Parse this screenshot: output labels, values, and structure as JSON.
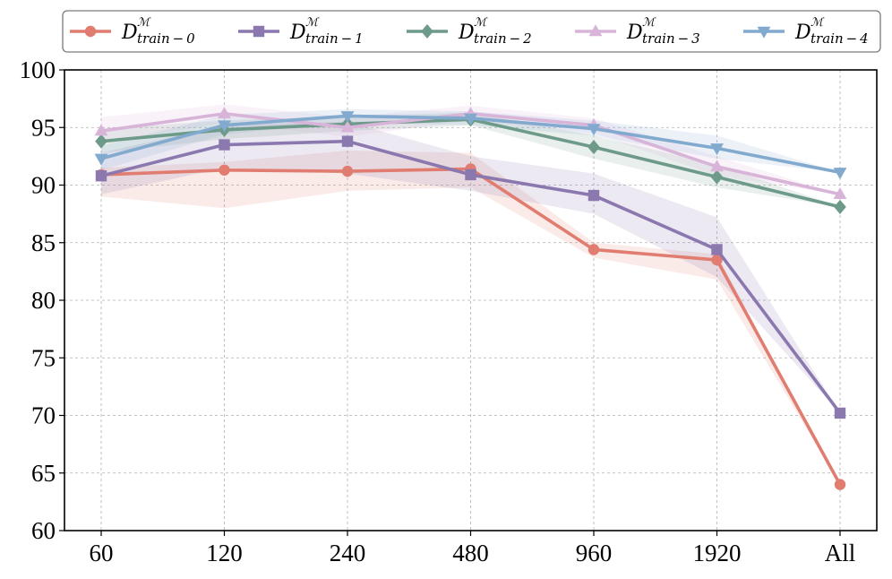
{
  "chart_data": {
    "type": "line",
    "categories": [
      "60",
      "120",
      "240",
      "480",
      "960",
      "1920",
      "All"
    ],
    "ylim": [
      60,
      100
    ],
    "yticks": [
      60,
      65,
      70,
      75,
      80,
      85,
      90,
      95,
      100
    ],
    "grid": true,
    "legend_position": "top",
    "series": [
      {
        "name_base": "D",
        "name_sup": "ℳ",
        "name_sub": "train − 0",
        "color": "#E07D70",
        "marker": "circle",
        "values": [
          90.9,
          91.3,
          91.2,
          91.4,
          84.4,
          83.5,
          64.0
        ],
        "band_low": [
          89.0,
          88.0,
          89.5,
          89.8,
          83.7,
          81.8,
          64.0
        ],
        "band_high": [
          91.5,
          92.0,
          93.0,
          92.8,
          85.0,
          84.0,
          64.0
        ]
      },
      {
        "name_base": "D",
        "name_sup": "ℳ",
        "name_sub": "train − 1",
        "color": "#8B78AF",
        "marker": "square",
        "values": [
          90.8,
          93.5,
          93.8,
          90.9,
          89.1,
          84.4,
          70.2
        ],
        "band_low": [
          89.2,
          91.5,
          91.0,
          89.5,
          87.5,
          82.0,
          70.2
        ],
        "band_high": [
          92.8,
          95.2,
          95.5,
          92.5,
          91.0,
          87.2,
          70.2
        ]
      },
      {
        "name_base": "D",
        "name_sup": "ℳ",
        "name_sub": "train − 2",
        "color": "#6E9A8A",
        "marker": "diamond",
        "values": [
          93.8,
          94.8,
          95.3,
          95.7,
          93.3,
          90.7,
          88.1
        ],
        "band_low": [
          92.8,
          94.0,
          94.7,
          95.2,
          92.3,
          89.8,
          88.1
        ],
        "band_high": [
          94.9,
          95.6,
          96.0,
          96.3,
          94.3,
          91.8,
          88.1
        ]
      },
      {
        "name_base": "D",
        "name_sup": "ℳ",
        "name_sub": "train − 3",
        "color": "#D8B4D8",
        "marker": "triangle-up",
        "values": [
          94.7,
          96.2,
          95.0,
          96.2,
          95.2,
          91.6,
          89.2
        ],
        "band_low": [
          93.6,
          95.4,
          94.2,
          95.6,
          94.5,
          90.8,
          89.2
        ],
        "band_high": [
          95.9,
          97.0,
          95.9,
          96.9,
          95.8,
          92.5,
          89.2
        ]
      },
      {
        "name_base": "D",
        "name_sup": "ℳ",
        "name_sub": "train − 4",
        "color": "#82A9CE",
        "marker": "triangle-down",
        "values": [
          92.3,
          95.2,
          96.0,
          95.8,
          94.9,
          93.2,
          91.1
        ],
        "band_low": [
          91.3,
          94.4,
          95.4,
          95.2,
          94.3,
          92.3,
          91.1
        ],
        "band_high": [
          93.4,
          96.1,
          96.6,
          96.4,
          95.6,
          94.3,
          91.1
        ]
      }
    ]
  }
}
